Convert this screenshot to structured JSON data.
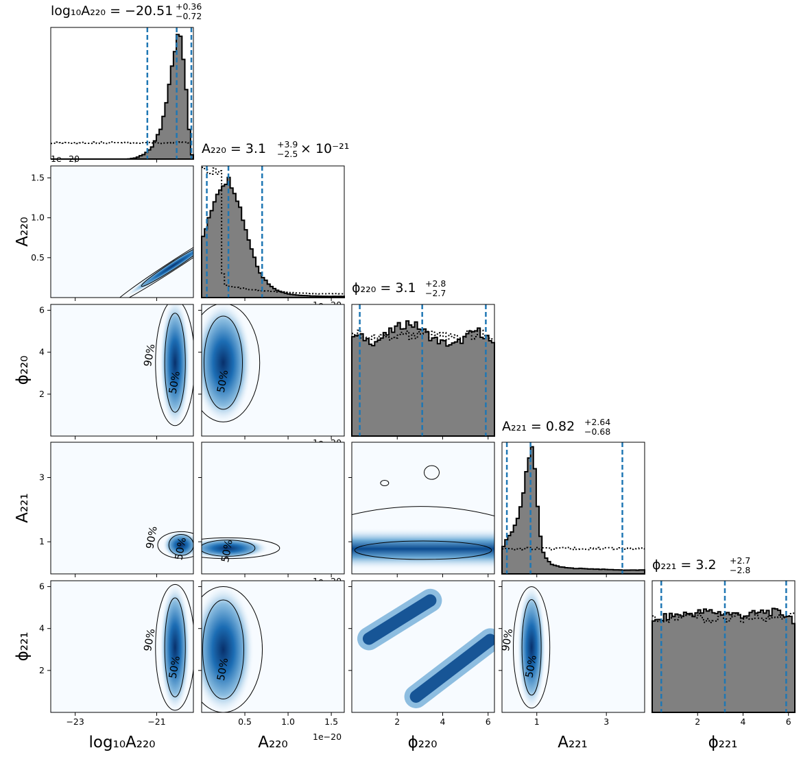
{
  "figure": {
    "type": "corner",
    "labels": {
      "logA220": "log₁₀A₂₂₀",
      "A220": "A₂₂₀",
      "phi220": "ϕ₂₂₀",
      "A221": "A₂₂₁",
      "phi221": "ϕ₂₂₁"
    },
    "titles": {
      "logA220": {
        "lhs": "log₁₀A₂₂₀ = −20.51",
        "up": "+0.36",
        "down": "−0.72",
        "suffix": ""
      },
      "A220": {
        "lhs": "A₂₂₀ = 3.1",
        "up": "+3.9",
        "down": "−2.5",
        "suffix": "× 10⁻²¹"
      },
      "phi220": {
        "lhs": "ϕ₂₂₀ = 3.1",
        "up": "+2.8",
        "down": "−2.7",
        "suffix": ""
      },
      "A221": {
        "lhs": "A₂₂₁ = 0.82",
        "up": "+2.64",
        "down": "−0.68",
        "suffix": ""
      },
      "phi221": {
        "lhs": "ϕ₂₂₁ = 3.2",
        "up": "+2.7",
        "down": "−2.8",
        "suffix": ""
      }
    },
    "offset_text": "1e−20",
    "contour_labels": [
      "50%",
      "90%"
    ],
    "colors": {
      "hist_fill": "#808080",
      "quantile_line": "#1f77b4",
      "density_dark": "#08306b",
      "density_light": "#f7fbff"
    }
  },
  "chart_data": {
    "type": "corner",
    "parameters": [
      {
        "key": "logA220",
        "range": [
          -23.6,
          -20.1
        ],
        "ticks": [
          -23,
          -21
        ],
        "tick_labels": [
          "−23",
          "−21"
        ],
        "quantiles": [
          -21.23,
          -20.51,
          -20.15
        ],
        "posterior": {
          "x": [
            -21.7,
            -21.5,
            -21.3,
            -21.1,
            -20.9,
            -20.8,
            -20.7,
            -20.6,
            -20.5,
            -20.45,
            -20.4,
            -20.35,
            -20.3,
            -20.25,
            -20.2,
            -20.15,
            -20.1
          ],
          "y": [
            0.0,
            0.01,
            0.04,
            0.1,
            0.24,
            0.38,
            0.56,
            0.8,
            0.96,
            1.0,
            0.93,
            0.82,
            0.66,
            0.44,
            0.22,
            0.05,
            0.0
          ]
        },
        "prior_level": 0.13
      },
      {
        "key": "A220",
        "range": [
          0.0,
          1.65
        ],
        "ticks": [
          0.5,
          1.0,
          1.5
        ],
        "tick_labels": [
          "0.5",
          "1.0",
          "1.5"
        ],
        "quantiles": [
          0.06,
          0.31,
          0.7
        ],
        "posterior": {
          "x": [
            0.0,
            0.05,
            0.1,
            0.15,
            0.2,
            0.25,
            0.3,
            0.35,
            0.4,
            0.45,
            0.5,
            0.55,
            0.6,
            0.65,
            0.7,
            0.8,
            0.9,
            1.0,
            1.1,
            1.2,
            1.3,
            1.4,
            1.5,
            1.65
          ],
          "y": [
            0.45,
            0.55,
            0.65,
            0.78,
            0.86,
            0.91,
            0.94,
            0.9,
            0.82,
            0.7,
            0.57,
            0.45,
            0.34,
            0.24,
            0.17,
            0.09,
            0.05,
            0.03,
            0.02,
            0.015,
            0.012,
            0.01,
            0.01,
            0.01
          ]
        },
        "prior": {
          "x": [
            0.0,
            0.03,
            0.06,
            0.12,
            0.18,
            0.22,
            0.25,
            0.28,
            0.32,
            0.4,
            0.6,
            0.8,
            1.0,
            1.3,
            1.65
          ],
          "y": [
            1.0,
            1.0,
            1.0,
            1.0,
            1.0,
            1.0,
            0.12,
            0.1,
            0.09,
            0.08,
            0.06,
            0.05,
            0.04,
            0.03,
            0.03
          ]
        }
      },
      {
        "key": "phi220",
        "range": [
          0.0,
          6.28
        ],
        "ticks": [
          2,
          4,
          6
        ],
        "tick_labels": [
          "2",
          "4",
          "6"
        ],
        "quantiles": [
          0.35,
          3.1,
          5.9
        ],
        "posterior": {
          "x": [
            0.0,
            0.5,
            1.0,
            1.5,
            2.0,
            2.5,
            3.0,
            3.5,
            4.0,
            4.5,
            5.0,
            5.5,
            6.0,
            6.28
          ],
          "y": [
            0.8,
            0.78,
            0.74,
            0.8,
            0.86,
            0.9,
            0.86,
            0.78,
            0.74,
            0.72,
            0.78,
            0.84,
            0.78,
            0.7
          ]
        },
        "prior_level": 0.8
      },
      {
        "key": "A221",
        "range": [
          0.0,
          4.1
        ],
        "ticks": [
          1,
          3
        ],
        "tick_labels": [
          "1",
          "3"
        ],
        "quantiles": [
          0.14,
          0.82,
          3.46
        ],
        "posterior": {
          "x": [
            0.0,
            0.2,
            0.4,
            0.6,
            0.7,
            0.8,
            0.85,
            0.9,
            0.95,
            1.0,
            1.1,
            1.2,
            1.4,
            1.6,
            1.8,
            2.0,
            2.5,
            3.0,
            3.5,
            4.1
          ],
          "y": [
            0.2,
            0.3,
            0.4,
            0.6,
            0.8,
            0.95,
            1.0,
            0.97,
            0.85,
            0.6,
            0.3,
            0.15,
            0.08,
            0.06,
            0.05,
            0.045,
            0.04,
            0.035,
            0.03,
            0.03
          ]
        },
        "prior_level": 0.2
      },
      {
        "key": "phi221",
        "range": [
          0.0,
          6.28
        ],
        "ticks": [
          2,
          4,
          6
        ],
        "tick_labels": [
          "2",
          "4",
          "6"
        ],
        "quantiles": [
          0.4,
          3.2,
          5.9
        ],
        "posterior": {
          "x": [
            0.0,
            0.5,
            1.0,
            1.5,
            2.0,
            2.5,
            3.0,
            3.5,
            4.0,
            4.5,
            5.0,
            5.5,
            6.0,
            6.28
          ],
          "y": [
            0.7,
            0.75,
            0.77,
            0.78,
            0.79,
            0.8,
            0.79,
            0.78,
            0.77,
            0.78,
            0.8,
            0.79,
            0.77,
            0.72
          ]
        },
        "prior_level": 0.75
      }
    ],
    "joint_modes": [
      {
        "row": 1,
        "col": 0,
        "x": -20.6,
        "y": 0.4
      },
      {
        "row": 2,
        "col": 0,
        "x": -20.55,
        "y": 3.5
      },
      {
        "row": 2,
        "col": 1,
        "x": 0.25,
        "y": 3.5
      },
      {
        "row": 3,
        "col": 0,
        "x": -20.4,
        "y": 0.9
      },
      {
        "row": 3,
        "col": 1,
        "x": 0.3,
        "y": 0.8
      },
      {
        "row": 3,
        "col": 2,
        "x": 3.14,
        "y": 0.85
      },
      {
        "row": 4,
        "col": 0,
        "x": -20.55,
        "y": 3.1
      },
      {
        "row": 4,
        "col": 1,
        "x": 0.25,
        "y": 3.0
      },
      {
        "row": 4,
        "col": 3,
        "x": 0.85,
        "y": 3.1
      }
    ]
  }
}
